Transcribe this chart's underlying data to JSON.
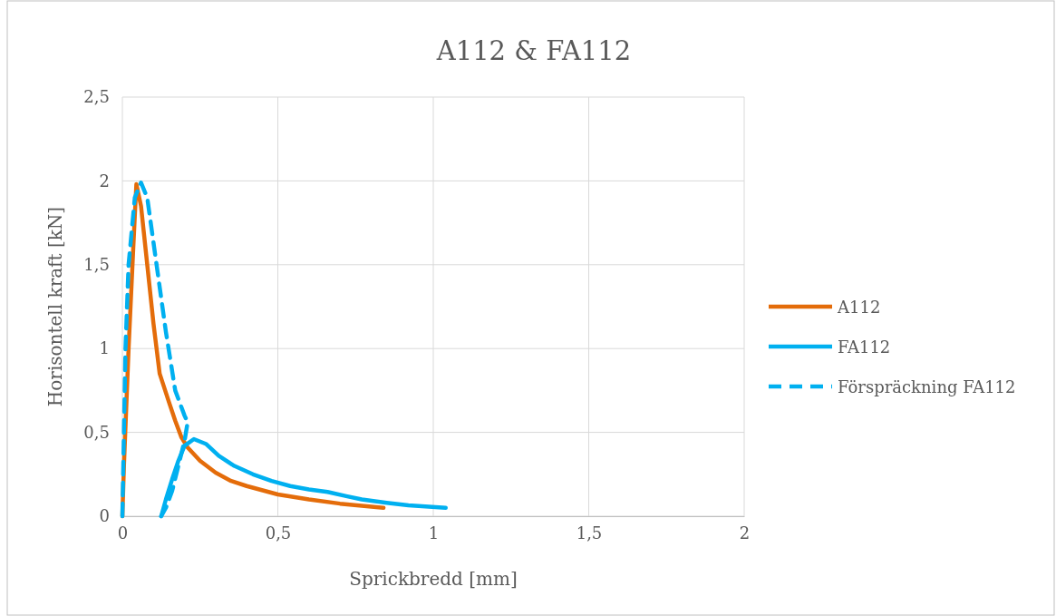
{
  "chart_data": {
    "type": "line",
    "title": "A112 & FA112",
    "xlabel": "Sprickbredd [mm]",
    "ylabel": "Horisontell kraft [kN]",
    "xlim": [
      0,
      2
    ],
    "ylim": [
      0,
      2.5
    ],
    "xticks": [
      0,
      {
        "value": 0.5,
        "label": "0,5"
      },
      1,
      {
        "value": 1.5,
        "label": "1,5"
      },
      2
    ],
    "yticks": [
      0,
      {
        "value": 0.5,
        "label": "0,5"
      },
      1,
      {
        "value": 1.5,
        "label": "1,5"
      },
      2,
      {
        "value": 2.5,
        "label": "2,5"
      }
    ],
    "grid": true,
    "legend": "right",
    "marker": "none",
    "series": [
      {
        "name": "A112",
        "color": "#e46c0a",
        "line_style": "solid",
        "x": [
          0,
          0.005,
          0.02,
          0.035,
          0.045,
          0.06,
          0.08,
          0.1,
          0.12,
          0.15,
          0.17,
          0.19,
          0.21,
          0.25,
          0.3,
          0.35,
          0.4,
          0.5,
          0.6,
          0.7,
          0.84
        ],
        "values": [
          0,
          0.3,
          1.0,
          1.6,
          1.98,
          1.85,
          1.5,
          1.15,
          0.85,
          0.68,
          0.57,
          0.47,
          0.41,
          0.33,
          0.26,
          0.21,
          0.18,
          0.13,
          0.1,
          0.075,
          0.05
        ]
      },
      {
        "name": "FA112",
        "color": "#00b0f0",
        "line_style": "solid",
        "x": [
          0.125,
          0.14,
          0.16,
          0.18,
          0.2,
          0.23,
          0.27,
          0.31,
          0.36,
          0.42,
          0.48,
          0.54,
          0.6,
          0.66,
          0.72,
          0.77,
          0.85,
          0.92,
          1.04
        ],
        "values": [
          0,
          0.1,
          0.22,
          0.33,
          0.42,
          0.46,
          0.43,
          0.36,
          0.3,
          0.25,
          0.21,
          0.18,
          0.16,
          0.145,
          0.12,
          0.1,
          0.08,
          0.065,
          0.05
        ]
      },
      {
        "name": "Förspräckning FA112",
        "color": "#00b0f0",
        "line_style": "dashed",
        "x": [
          0,
          0.005,
          0.01,
          0.02,
          0.04,
          0.06,
          0.08,
          0.11,
          0.14,
          0.17,
          0.2,
          0.21,
          0.2,
          0.18,
          0.16,
          0.14,
          0.125
        ],
        "values": [
          0,
          0.5,
          1.0,
          1.5,
          1.9,
          1.99,
          1.9,
          1.5,
          1.1,
          0.75,
          0.6,
          0.56,
          0.45,
          0.3,
          0.15,
          0.05,
          0
        ]
      }
    ]
  }
}
